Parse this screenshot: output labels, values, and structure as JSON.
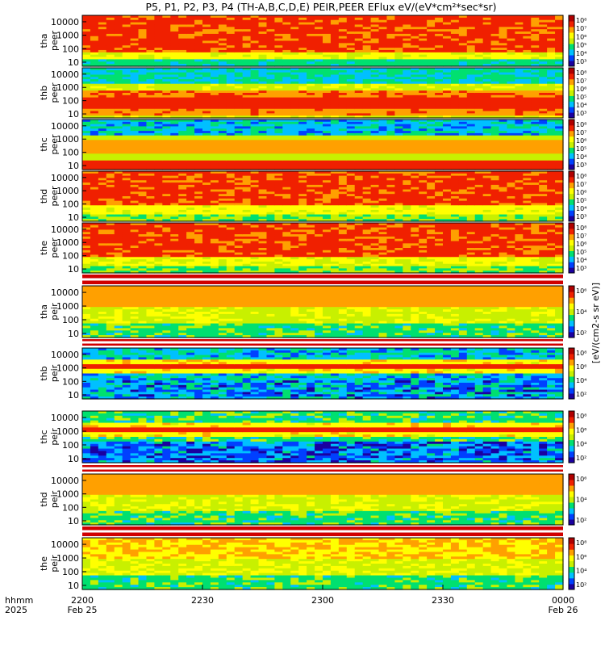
{
  "title": "P5, P1, P2, P3, P4 (TH-A,B,C,D,E) PEIR,PEER EFlux eV/(eV*cm²*sec*sr)",
  "time_axis": {
    "row_label_1": "hhmm",
    "row_label_2": "2025",
    "ticks": [
      "2200",
      "2230",
      "2300",
      "2330",
      "0000"
    ],
    "date_start": "Feb 25",
    "date_end": "Feb 26"
  },
  "colorbar_axis_label": "[eV/(cm2-s sr eV)]",
  "colors": {
    "background": "#ffffff",
    "colormap": [
      "#1a00a0",
      "#0040ff",
      "#00c0ff",
      "#00e070",
      "#c8f000",
      "#ffff00",
      "#ffa000",
      "#f02000",
      "#b00000"
    ]
  },
  "chart_data": {
    "type": "heatmap",
    "x_range": [
      "2025-02-25 22:00",
      "2025-02-26 00:00"
    ],
    "y_scale": "log",
    "y_unit": "eV",
    "colorbar_scale": "log",
    "panels": [
      {
        "probe": "tha",
        "species": "peer",
        "y_ticks": [
          "10",
          "100",
          "1000",
          "10000"
        ],
        "ylim": [
          5,
          30000
        ],
        "cbar_ticks": [
          "10⁸",
          "10⁷",
          "10⁶",
          "10⁵",
          "10⁴",
          "10³"
        ],
        "profile": "tha-peer"
      },
      {
        "probe": "thb",
        "species": "peer",
        "y_ticks": [
          "10",
          "100",
          "1000",
          "10000"
        ],
        "ylim": [
          5,
          30000
        ],
        "cbar_ticks": [
          "10⁸",
          "10⁷",
          "10⁶",
          "10⁵",
          "10⁴",
          "10³"
        ],
        "profile": "thb-peer"
      },
      {
        "probe": "thc",
        "species": "peer",
        "y_ticks": [
          "10",
          "100",
          "1000",
          "10000"
        ],
        "ylim": [
          5,
          30000
        ],
        "cbar_ticks": [
          "10⁸",
          "10⁷",
          "10⁶",
          "10⁵",
          "10⁴",
          "10³"
        ],
        "profile": "thc-peer"
      },
      {
        "probe": "thd",
        "species": "peer",
        "y_ticks": [
          "10",
          "100",
          "1000",
          "10000"
        ],
        "ylim": [
          5,
          30000
        ],
        "cbar_ticks": [
          "10⁸",
          "10⁷",
          "10⁶",
          "10⁵",
          "10⁴",
          "10³"
        ],
        "profile": "thd-peer"
      },
      {
        "probe": "the",
        "species": "peer",
        "y_ticks": [
          "10",
          "100",
          "1000",
          "10000"
        ],
        "ylim": [
          5,
          30000
        ],
        "cbar_ticks": [
          "10⁸",
          "10⁷",
          "10⁶",
          "10⁵",
          "10⁴",
          "10³"
        ],
        "profile": "the-peer"
      },
      {
        "probe": "tha",
        "species": "peir",
        "y_ticks": [
          "10",
          "100",
          "1000",
          "10000"
        ],
        "ylim": [
          5,
          30000
        ],
        "cbar_ticks": [
          "10⁶",
          "10⁴",
          "10²"
        ],
        "profile": "tha-peir"
      },
      {
        "probe": "thb",
        "species": "peir",
        "y_ticks": [
          "10",
          "100",
          "1000",
          "10000"
        ],
        "ylim": [
          5,
          30000
        ],
        "cbar_ticks": [
          "10⁸",
          "10⁶",
          "10⁴",
          "10²"
        ],
        "profile": "thb-peir"
      },
      {
        "probe": "thc",
        "species": "peir",
        "y_ticks": [
          "10",
          "100",
          "1000",
          "10000"
        ],
        "ylim": [
          5,
          30000
        ],
        "cbar_ticks": [
          "10⁸",
          "10⁶",
          "10⁴",
          "10²"
        ],
        "profile": "thc-peir"
      },
      {
        "probe": "thd",
        "species": "peir",
        "y_ticks": [
          "10",
          "100",
          "1000",
          "10000"
        ],
        "ylim": [
          5,
          30000
        ],
        "cbar_ticks": [
          "10⁶",
          "10⁴",
          "10²"
        ],
        "profile": "thd-peir"
      },
      {
        "probe": "the",
        "species": "peir",
        "y_ticks": [
          "10",
          "100",
          "1000",
          "10000"
        ],
        "ylim": [
          5,
          30000
        ],
        "cbar_ticks": [
          "10⁸",
          "10⁶",
          "10⁴",
          "10²"
        ],
        "profile": "the-peir"
      }
    ]
  }
}
